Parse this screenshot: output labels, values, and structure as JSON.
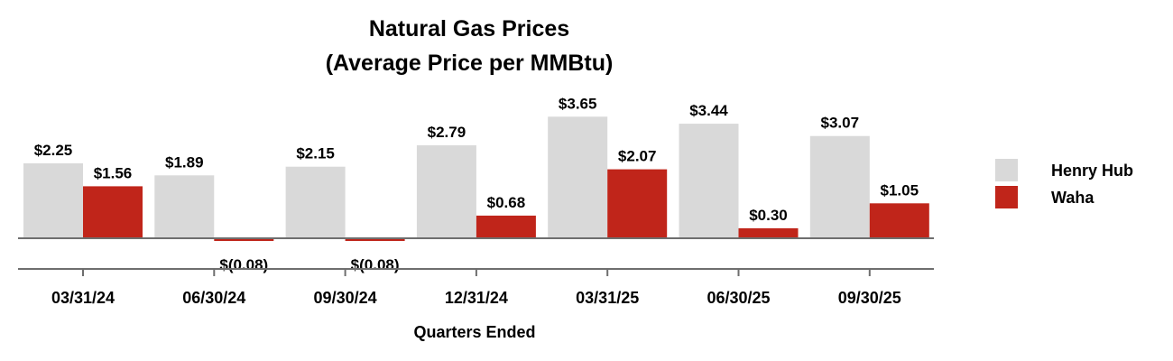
{
  "chart_data": {
    "type": "bar",
    "title": [
      "Natural Gas Prices",
      "(Average Price per MMBtu)"
    ],
    "xlabel": "Quarters Ended",
    "ylabel": "",
    "categories": [
      "03/31/24",
      "06/30/24",
      "09/30/24",
      "12/31/24",
      "03/31/25",
      "06/30/25",
      "09/30/25"
    ],
    "series": [
      {
        "name": "Henry Hub",
        "color": "#d9d9d9",
        "values": [
          2.25,
          1.89,
          2.15,
          2.79,
          3.65,
          3.44,
          3.07
        ],
        "labels": [
          "$2.25",
          "$1.89",
          "$2.15",
          "$2.79",
          "$3.65",
          "$3.44",
          "$3.07"
        ]
      },
      {
        "name": "Waha",
        "color": "#c0251a",
        "values": [
          1.56,
          -0.08,
          -0.08,
          0.68,
          2.07,
          0.3,
          1.05
        ],
        "labels": [
          "$1.56",
          "$(0.08)",
          "$(0.08)",
          "$0.68",
          "$2.07",
          "$0.30",
          "$1.05"
        ]
      }
    ],
    "legend_position": "right",
    "grid": false
  }
}
